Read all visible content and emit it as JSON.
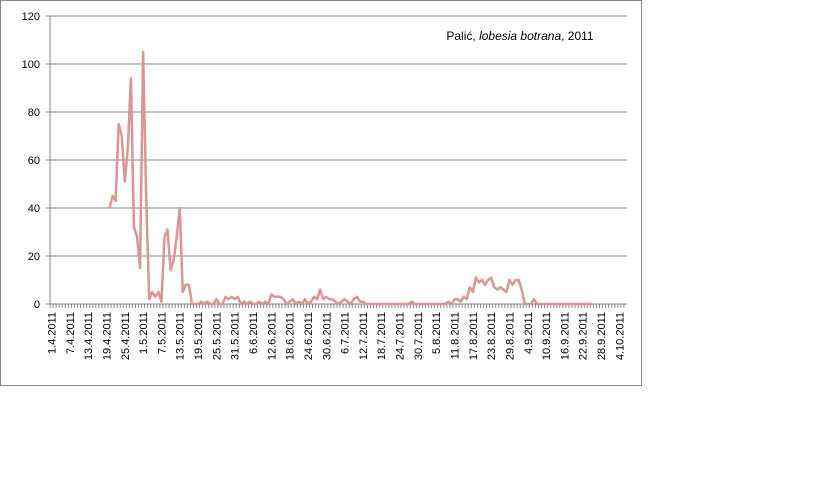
{
  "chart_data": {
    "type": "line",
    "annotation": [
      "Palić, ",
      "lobesia botrana",
      ", 2011"
    ],
    "categories": [
      "1.4.2011",
      null,
      null,
      null,
      null,
      null,
      "7.4.2011",
      null,
      null,
      null,
      null,
      null,
      "13.4.2011",
      null,
      null,
      null,
      null,
      null,
      "19.4.2011",
      null,
      null,
      null,
      null,
      null,
      "25.4.2011",
      null,
      null,
      null,
      null,
      null,
      "1.5.2011",
      null,
      null,
      null,
      null,
      null,
      "7.5.2011",
      null,
      null,
      null,
      null,
      null,
      "13.5.2011",
      null,
      null,
      null,
      null,
      null,
      "19.5.2011",
      null,
      null,
      null,
      null,
      null,
      "25.5.2011",
      null,
      null,
      null,
      null,
      null,
      "31.5.2011",
      null,
      null,
      null,
      null,
      null,
      "6.6.2011",
      null,
      null,
      null,
      null,
      null,
      "12.6.2011",
      null,
      null,
      null,
      null,
      null,
      "18.6.2011",
      null,
      null,
      null,
      null,
      null,
      "24.6.2011",
      null,
      null,
      null,
      null,
      null,
      "30.6.2011",
      null,
      null,
      null,
      null,
      null,
      "6.7.2011",
      null,
      null,
      null,
      null,
      null,
      "12.7.2011",
      null,
      null,
      null,
      null,
      null,
      "18.7.2011",
      null,
      null,
      null,
      null,
      null,
      "24.7.2011",
      null,
      null,
      null,
      null,
      null,
      "30.7.2011",
      null,
      null,
      null,
      null,
      null,
      "5.8.2011",
      null,
      null,
      null,
      null,
      null,
      "11.8.2011",
      null,
      null,
      null,
      null,
      null,
      "17.8.2011",
      null,
      null,
      null,
      null,
      null,
      "23.8.2011",
      null,
      null,
      null,
      null,
      null,
      "29.8.2011",
      null,
      null,
      null,
      null,
      null,
      "4.9.2011",
      null,
      null,
      null,
      null,
      null,
      "10.9.2011",
      null,
      null,
      null,
      null,
      null,
      "16.9.2011",
      null,
      null,
      null,
      null,
      null,
      "22.9.2011",
      null,
      null,
      null,
      null,
      null,
      "28.9.2011",
      null,
      null,
      null,
      null,
      null,
      "4.10.2011",
      null,
      null
    ],
    "values": [
      null,
      null,
      null,
      null,
      null,
      null,
      null,
      null,
      null,
      null,
      null,
      null,
      null,
      null,
      null,
      null,
      null,
      null,
      null,
      40,
      45,
      43,
      75,
      70,
      51,
      65,
      94,
      32,
      28,
      15,
      105,
      45,
      2,
      5,
      3,
      5,
      1,
      28,
      31,
      14,
      18,
      28,
      40,
      5,
      8,
      8,
      0,
      0,
      0,
      1,
      0,
      1,
      0,
      0,
      2,
      0,
      0,
      3,
      2,
      3,
      2,
      3,
      0,
      1,
      0,
      1,
      0,
      0,
      1,
      0,
      1,
      0,
      4,
      3,
      3,
      3,
      2,
      0,
      1,
      2,
      0,
      1,
      0,
      2,
      0,
      1,
      3,
      2,
      6,
      2,
      3,
      2,
      2,
      1,
      0,
      1,
      2,
      1,
      0,
      2,
      3,
      1,
      1,
      0,
      0,
      0,
      0,
      0,
      0,
      0,
      0,
      0,
      0,
      0,
      0,
      0,
      0,
      0,
      1,
      0,
      0,
      0,
      0,
      0,
      0,
      0,
      0,
      0,
      0,
      0,
      1,
      0,
      2,
      2,
      1,
      3,
      2,
      7,
      5,
      11,
      9,
      10,
      8,
      10,
      11,
      7,
      6,
      7,
      6,
      5,
      10,
      8,
      10,
      10,
      6,
      0,
      0,
      0,
      2,
      0,
      0,
      0,
      0,
      0,
      0,
      0,
      0,
      0,
      0,
      0,
      0,
      0,
      0,
      0,
      0,
      0,
      0,
      0,
      null,
      null,
      null,
      null,
      null,
      null,
      null,
      null,
      null,
      null,
      null
    ],
    "color": "#d99694",
    "ylim": [
      0,
      120
    ],
    "yticks": [
      0,
      20,
      40,
      60,
      80,
      100,
      120
    ],
    "grid": true
  }
}
